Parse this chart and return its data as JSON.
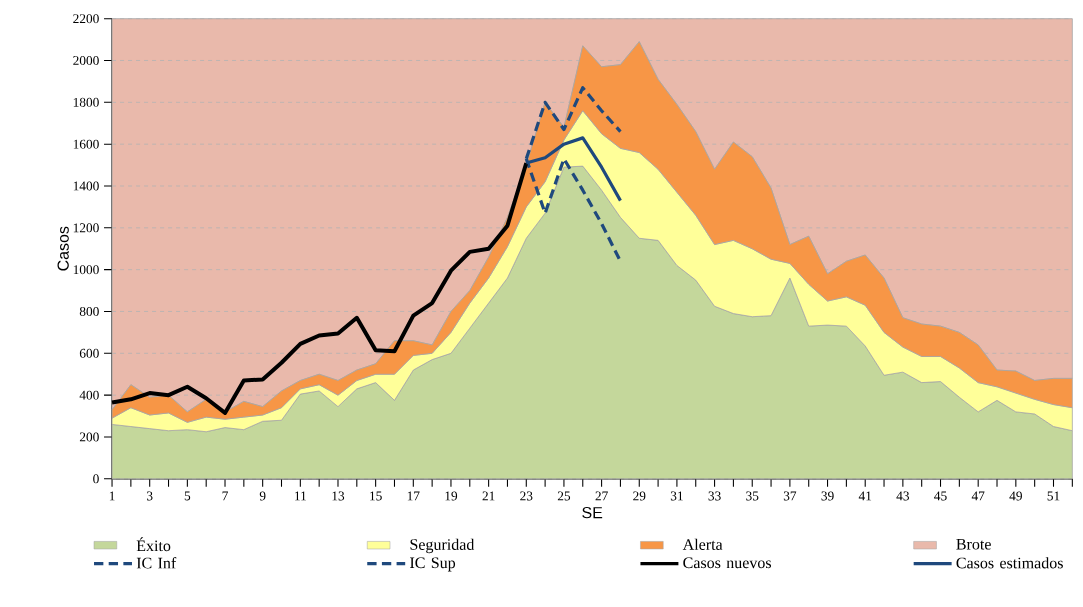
{
  "chart_data": {
    "type": "area",
    "stacked": true,
    "xlabel": "SE",
    "ylabel": "Casos",
    "x": [
      1,
      2,
      3,
      4,
      5,
      6,
      7,
      8,
      9,
      10,
      11,
      12,
      13,
      14,
      15,
      16,
      17,
      18,
      19,
      20,
      21,
      22,
      23,
      24,
      25,
      26,
      27,
      28,
      29,
      30,
      31,
      32,
      33,
      34,
      35,
      36,
      37,
      38,
      39,
      40,
      41,
      42,
      43,
      44,
      45,
      46,
      47,
      48,
      49,
      50,
      51,
      52
    ],
    "xlim": [
      1,
      52
    ],
    "ylim": [
      0,
      2200
    ],
    "xticks": [
      1,
      {
        "value": 2,
        "label": null
      },
      3,
      {
        "value": 4,
        "label": null
      },
      5,
      {
        "value": 6,
        "label": null
      },
      7,
      {
        "value": 8,
        "label": null
      },
      9,
      {
        "value": 10,
        "label": null
      },
      11,
      {
        "value": 12,
        "label": null
      },
      13,
      {
        "value": 14,
        "label": null
      },
      15,
      {
        "value": 16,
        "label": null
      },
      17,
      {
        "value": 18,
        "label": null
      },
      19,
      {
        "value": 20,
        "label": null
      },
      21,
      {
        "value": 22,
        "label": null
      },
      23,
      {
        "value": 24,
        "label": null
      },
      25,
      {
        "value": 26,
        "label": null
      },
      27,
      {
        "value": 28,
        "label": null
      },
      29,
      {
        "value": 30,
        "label": null
      },
      31,
      {
        "value": 32,
        "label": null
      },
      33,
      {
        "value": 34,
        "label": null
      },
      35,
      {
        "value": 36,
        "label": null
      },
      37,
      {
        "value": 38,
        "label": null
      },
      39,
      {
        "value": 40,
        "label": null
      },
      41,
      {
        "value": 42,
        "label": null
      },
      43,
      {
        "value": 44,
        "label": null
      },
      45,
      {
        "value": 46,
        "label": null
      },
      47,
      {
        "value": 48,
        "label": null
      },
      49,
      {
        "value": 50,
        "label": null
      },
      51,
      {
        "value": 52,
        "label": null
      }
    ],
    "yticks": [
      0,
      200,
      400,
      600,
      800,
      1000,
      1200,
      1400,
      1600,
      1800,
      2000,
      2200
    ],
    "grid": "y",
    "legend": "bottom",
    "series": [
      {
        "name": "Éxito",
        "color": "#c4d79b",
        "values": [
          260,
          250,
          240,
          230,
          235,
          225,
          245,
          235,
          275,
          280,
          405,
          420,
          345,
          430,
          460,
          375,
          520,
          570,
          600,
          720,
          840,
          960,
          1150,
          1270,
          1490,
          1495,
          1380,
          1250,
          1150,
          1140,
          1020,
          950,
          825,
          790,
          775,
          780,
          960,
          730,
          735,
          730,
          635,
          495,
          510,
          460,
          465,
          390,
          320,
          375,
          320,
          310,
          250,
          230
        ]
      },
      {
        "name": "Seguridad",
        "color": "#ffff99",
        "values": [
          30,
          90,
          65,
          85,
          35,
          70,
          40,
          60,
          30,
          60,
          25,
          30,
          55,
          40,
          40,
          125,
          70,
          30,
          100,
          120,
          120,
          150,
          150,
          150,
          130,
          265,
          270,
          330,
          410,
          340,
          350,
          310,
          295,
          350,
          325,
          270,
          70,
          200,
          115,
          140,
          195,
          205,
          120,
          125,
          120,
          140,
          140,
          65,
          90,
          70,
          105,
          110
        ]
      },
      {
        "name": "Alerta",
        "color": "#f79646",
        "values": [
          40,
          110,
          85,
          85,
          50,
          85,
          35,
          75,
          40,
          80,
          40,
          50,
          70,
          50,
          50,
          160,
          70,
          40,
          100,
          60,
          100,
          140,
          200,
          380,
          60,
          310,
          320,
          400,
          530,
          430,
          420,
          400,
          360,
          470,
          440,
          340,
          90,
          230,
          130,
          170,
          240,
          260,
          140,
          155,
          145,
          170,
          180,
          80,
          105,
          90,
          125,
          140
        ]
      },
      {
        "name": "Brote",
        "color": "#e9b9ab",
        "values": [
          1870,
          1750,
          1810,
          1800,
          1880,
          1820,
          1880,
          1830,
          1855,
          1780,
          1730,
          1700,
          1730,
          1680,
          1650,
          1540,
          1540,
          1560,
          1400,
          1300,
          1140,
          950,
          700,
          400,
          520,
          130,
          230,
          220,
          110,
          290,
          410,
          540,
          720,
          590,
          660,
          810,
          1080,
          1040,
          1220,
          1160,
          1130,
          1240,
          1430,
          1460,
          1470,
          1500,
          1560,
          1680,
          1685,
          1730,
          1720,
          1720
        ]
      },
      {
        "name": "IC Inf",
        "type": "line",
        "line_style": "dashed",
        "color": "#1f497d",
        "x": [
          23,
          24,
          25,
          26,
          27,
          28
        ],
        "values": [
          1530,
          1270,
          1530,
          1380,
          1220,
          1040
        ]
      },
      {
        "name": "IC Sup",
        "type": "line",
        "line_style": "dashed",
        "color": "#1f497d",
        "x": [
          23,
          24,
          25,
          26,
          27,
          28
        ],
        "values": [
          1530,
          1800,
          1670,
          1870,
          1760,
          1660
        ]
      },
      {
        "name": "Casos nuevos",
        "type": "line",
        "line_style": "solid",
        "color": "#000000",
        "x": [
          1,
          2,
          3,
          4,
          5,
          6,
          7,
          8,
          9,
          10,
          11,
          12,
          13,
          14,
          15,
          16,
          17,
          18,
          19,
          20,
          21,
          22,
          23
        ],
        "values": [
          365,
          380,
          410,
          400,
          440,
          385,
          315,
          470,
          475,
          555,
          645,
          685,
          695,
          770,
          615,
          610,
          780,
          840,
          995,
          1085,
          1100,
          1210,
          1510
        ]
      },
      {
        "name": "Casos estimados",
        "type": "line",
        "line_style": "solid",
        "color": "#1f497d",
        "x": [
          23,
          24,
          25,
          26,
          27,
          28
        ],
        "values": [
          1510,
          1535,
          1600,
          1630,
          1490,
          1330
        ]
      }
    ]
  }
}
